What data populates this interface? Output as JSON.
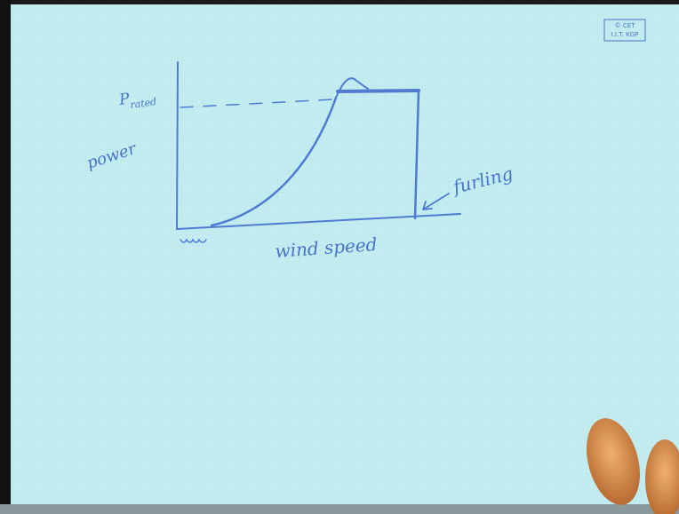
{
  "logo": {
    "line1": "© CET",
    "line2": "I.I.T. KGP"
  },
  "labels": {
    "p_rated": {
      "symbol": "P",
      "subscript": "rated"
    },
    "y_axis": "power",
    "x_axis": "wind speed",
    "furling": "furling"
  }
}
